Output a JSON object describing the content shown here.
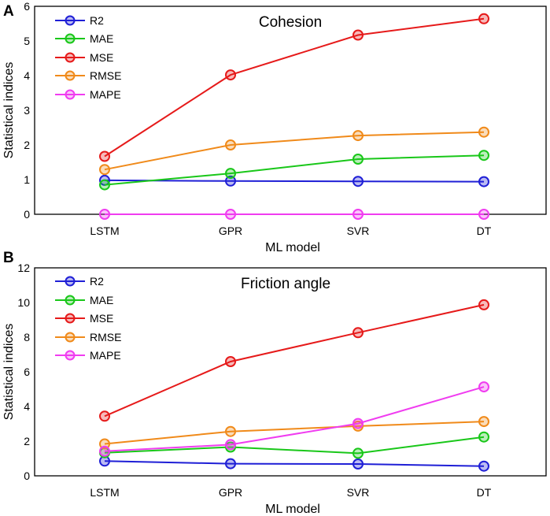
{
  "chart_data": [
    {
      "panel_letter": "A",
      "type": "line",
      "title": "Cohesion",
      "xlabel": "ML model",
      "ylabel": "Statistical indices",
      "categories": [
        "LSTM",
        "GPR",
        "SVR",
        "DT"
      ],
      "ylim": [
        0,
        6
      ],
      "yticks": [
        "0",
        "1",
        "2",
        "3",
        "4",
        "5",
        "6"
      ],
      "legend_position": "top-left",
      "series": [
        {
          "name": "R2",
          "color": "#1f1fd6",
          "values": [
            0.98,
            0.96,
            0.95,
            0.94
          ]
        },
        {
          "name": "MAE",
          "color": "#19c719",
          "values": [
            0.85,
            1.18,
            1.59,
            1.7
          ]
        },
        {
          "name": "MSE",
          "color": "#e61a1a",
          "values": [
            1.67,
            4.02,
            5.17,
            5.64
          ]
        },
        {
          "name": "RMSE",
          "color": "#f08a1a",
          "values": [
            1.29,
            2.0,
            2.27,
            2.37
          ]
        },
        {
          "name": "MAPE",
          "color": "#f03cf0",
          "values": [
            0.0,
            0.0,
            0.0,
            0.0
          ]
        }
      ]
    },
    {
      "panel_letter": "B",
      "type": "line",
      "title": "Friction angle",
      "xlabel": "ML model",
      "ylabel": "Statistical indices",
      "categories": [
        "LSTM",
        "GPR",
        "SVR",
        "DT"
      ],
      "ylim": [
        0,
        12
      ],
      "yticks": [
        "0",
        "2",
        "4",
        "6",
        "8",
        "10",
        "12"
      ],
      "legend_position": "top-left",
      "series": [
        {
          "name": "R2",
          "color": "#1f1fd6",
          "values": [
            0.85,
            0.7,
            0.68,
            0.56
          ]
        },
        {
          "name": "MAE",
          "color": "#19c719",
          "values": [
            1.33,
            1.66,
            1.3,
            2.24
          ]
        },
        {
          "name": "MSE",
          "color": "#e61a1a",
          "values": [
            3.44,
            6.59,
            8.26,
            9.87
          ]
        },
        {
          "name": "RMSE",
          "color": "#f08a1a",
          "values": [
            1.84,
            2.56,
            2.87,
            3.13
          ]
        },
        {
          "name": "MAPE",
          "color": "#f03cf0",
          "values": [
            1.42,
            1.8,
            3.02,
            5.13
          ]
        }
      ]
    }
  ]
}
